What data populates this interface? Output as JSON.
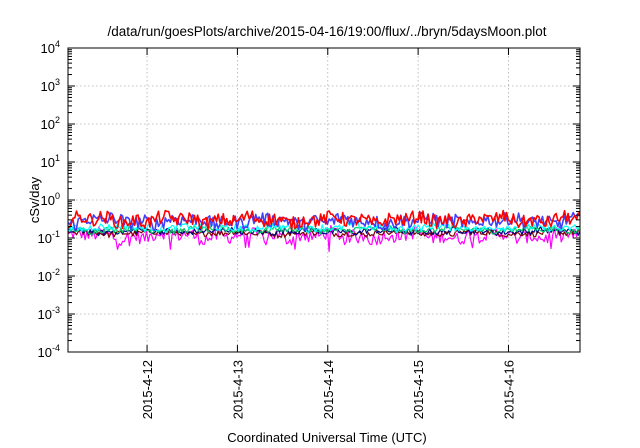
{
  "chart_data": {
    "type": "line",
    "title": "/data/run/goesPlots/archive/2015-04-16/19:00/flux/../bryn/5daysMoon.plot",
    "xlabel": "Coordinated Universal Time (UTC)",
    "ylabel": "cSv/day",
    "yscale": "log",
    "ylim": [
      0.0001,
      10000
    ],
    "y_ticks": [
      {
        "base": "10",
        "exp": "-4",
        "value": 0.0001
      },
      {
        "base": "10",
        "exp": "-3",
        "value": 0.001
      },
      {
        "base": "10",
        "exp": "-2",
        "value": 0.01
      },
      {
        "base": "10",
        "exp": "-1",
        "value": 0.1
      },
      {
        "base": "10",
        "exp": "0",
        "value": 1
      },
      {
        "base": "10",
        "exp": "1",
        "value": 10
      },
      {
        "base": "10",
        "exp": "2",
        "value": 100
      },
      {
        "base": "10",
        "exp": "3",
        "value": 1000
      },
      {
        "base": "10",
        "exp": "4",
        "value": 10000
      }
    ],
    "xlim": [
      "2015-04-11T03:00",
      "2015-04-16T19:00"
    ],
    "x_ticks": [
      {
        "label": "2015-4-12",
        "value": "2015-04-12T00:00"
      },
      {
        "label": "2015-4-13",
        "value": "2015-04-13T00:00"
      },
      {
        "label": "2015-4-14",
        "value": "2015-04-14T00:00"
      },
      {
        "label": "2015-4-15",
        "value": "2015-04-15T00:00"
      },
      {
        "label": "2015-4-16",
        "value": "2015-04-16T00:00"
      }
    ],
    "grid": true,
    "legend": "none",
    "series": [
      {
        "color": "#ff00ff",
        "level": 0.115,
        "spread": 0.22,
        "dips": true
      },
      {
        "color": "#800000",
        "level": 0.135,
        "spread": 0.1,
        "dips": false
      },
      {
        "color": "#000080",
        "level": 0.15,
        "spread": 0.1,
        "dips": false
      },
      {
        "color": "#00cc66",
        "level": 0.165,
        "spread": 0.1,
        "dips": false
      },
      {
        "color": "#00ffff",
        "level": 0.19,
        "spread": 0.12,
        "dips": false
      },
      {
        "color": "#4040ff",
        "level": 0.28,
        "spread": 0.22,
        "dips": false
      },
      {
        "color": "#ff0000",
        "level": 0.3,
        "spread": 0.22,
        "dips": false
      }
    ]
  }
}
